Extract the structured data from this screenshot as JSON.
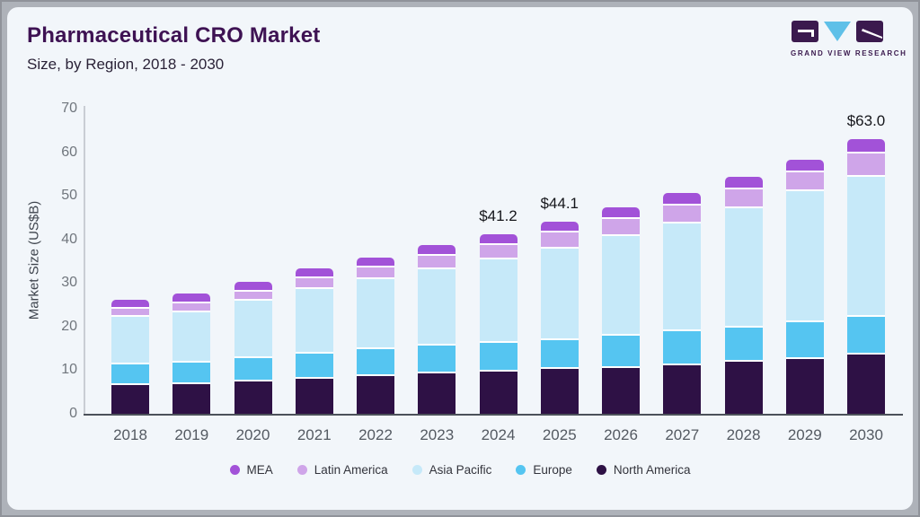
{
  "header": {
    "title": "Pharmaceutical CRO Market",
    "subtitle": "Size, by Region, 2018 - 2030"
  },
  "logo": {
    "name": "grand-view-research-logo",
    "text": "GRAND VIEW RESEARCH",
    "colors": {
      "dark_purple": "#3b1a4e",
      "light_blue": "#5fc0e8"
    }
  },
  "chart_data": {
    "type": "bar",
    "variant": "stacked",
    "title": "Pharmaceutical CRO Market",
    "subtitle": "Size, by Region, 2018 - 2030",
    "xlabel": "",
    "ylabel": "Market Size (US$B)",
    "ylim": [
      0,
      70
    ],
    "yticks": [
      0,
      10,
      20,
      30,
      40,
      50,
      60,
      70
    ],
    "grid": "off",
    "legend_position": "bottom",
    "categories": [
      "2018",
      "2019",
      "2020",
      "2021",
      "2022",
      "2023",
      "2024",
      "2025",
      "2026",
      "2027",
      "2028",
      "2029",
      "2030"
    ],
    "series": [
      {
        "name": "North America",
        "color": "#2e1145",
        "values": [
          6.9,
          7.2,
          7.9,
          8.4,
          9.0,
          9.6,
          10.0,
          10.6,
          11.0,
          11.6,
          12.4,
          13.0,
          13.9
        ]
      },
      {
        "name": "Europe",
        "color": "#55c5f1",
        "values": [
          4.8,
          5.0,
          5.2,
          5.9,
          6.2,
          6.4,
          6.7,
          6.7,
          7.4,
          7.7,
          7.8,
          8.5,
          8.7
        ]
      },
      {
        "name": "Asia Pacific",
        "color": "#c6e9f9",
        "values": [
          10.9,
          11.5,
          13.2,
          14.8,
          16.1,
          17.6,
          19.2,
          20.9,
          22.8,
          24.8,
          27.4,
          29.9,
          32.2
        ]
      },
      {
        "name": "Latin America",
        "color": "#cfa5e9",
        "values": [
          2.0,
          2.1,
          2.2,
          2.4,
          2.6,
          3.0,
          3.3,
          3.8,
          3.9,
          4.1,
          4.2,
          4.3,
          5.3
        ]
      },
      {
        "name": "MEA",
        "color": "#a252d8",
        "values": [
          1.6,
          1.7,
          1.8,
          1.9,
          2.0,
          2.1,
          2.0,
          2.1,
          2.3,
          2.4,
          2.5,
          2.6,
          2.9
        ]
      }
    ],
    "totals": [
      26.2,
      27.5,
      30.3,
      33.4,
      35.9,
      38.7,
      41.2,
      44.1,
      47.4,
      50.6,
      54.3,
      58.3,
      63.0
    ],
    "annotations": [
      {
        "category": "2024",
        "label": "$41.2"
      },
      {
        "category": "2025",
        "label": "$44.1"
      },
      {
        "category": "2030",
        "label": "$63.0"
      }
    ],
    "legend": [
      "MEA",
      "Latin America",
      "Asia Pacific",
      "Europe",
      "North America"
    ]
  }
}
